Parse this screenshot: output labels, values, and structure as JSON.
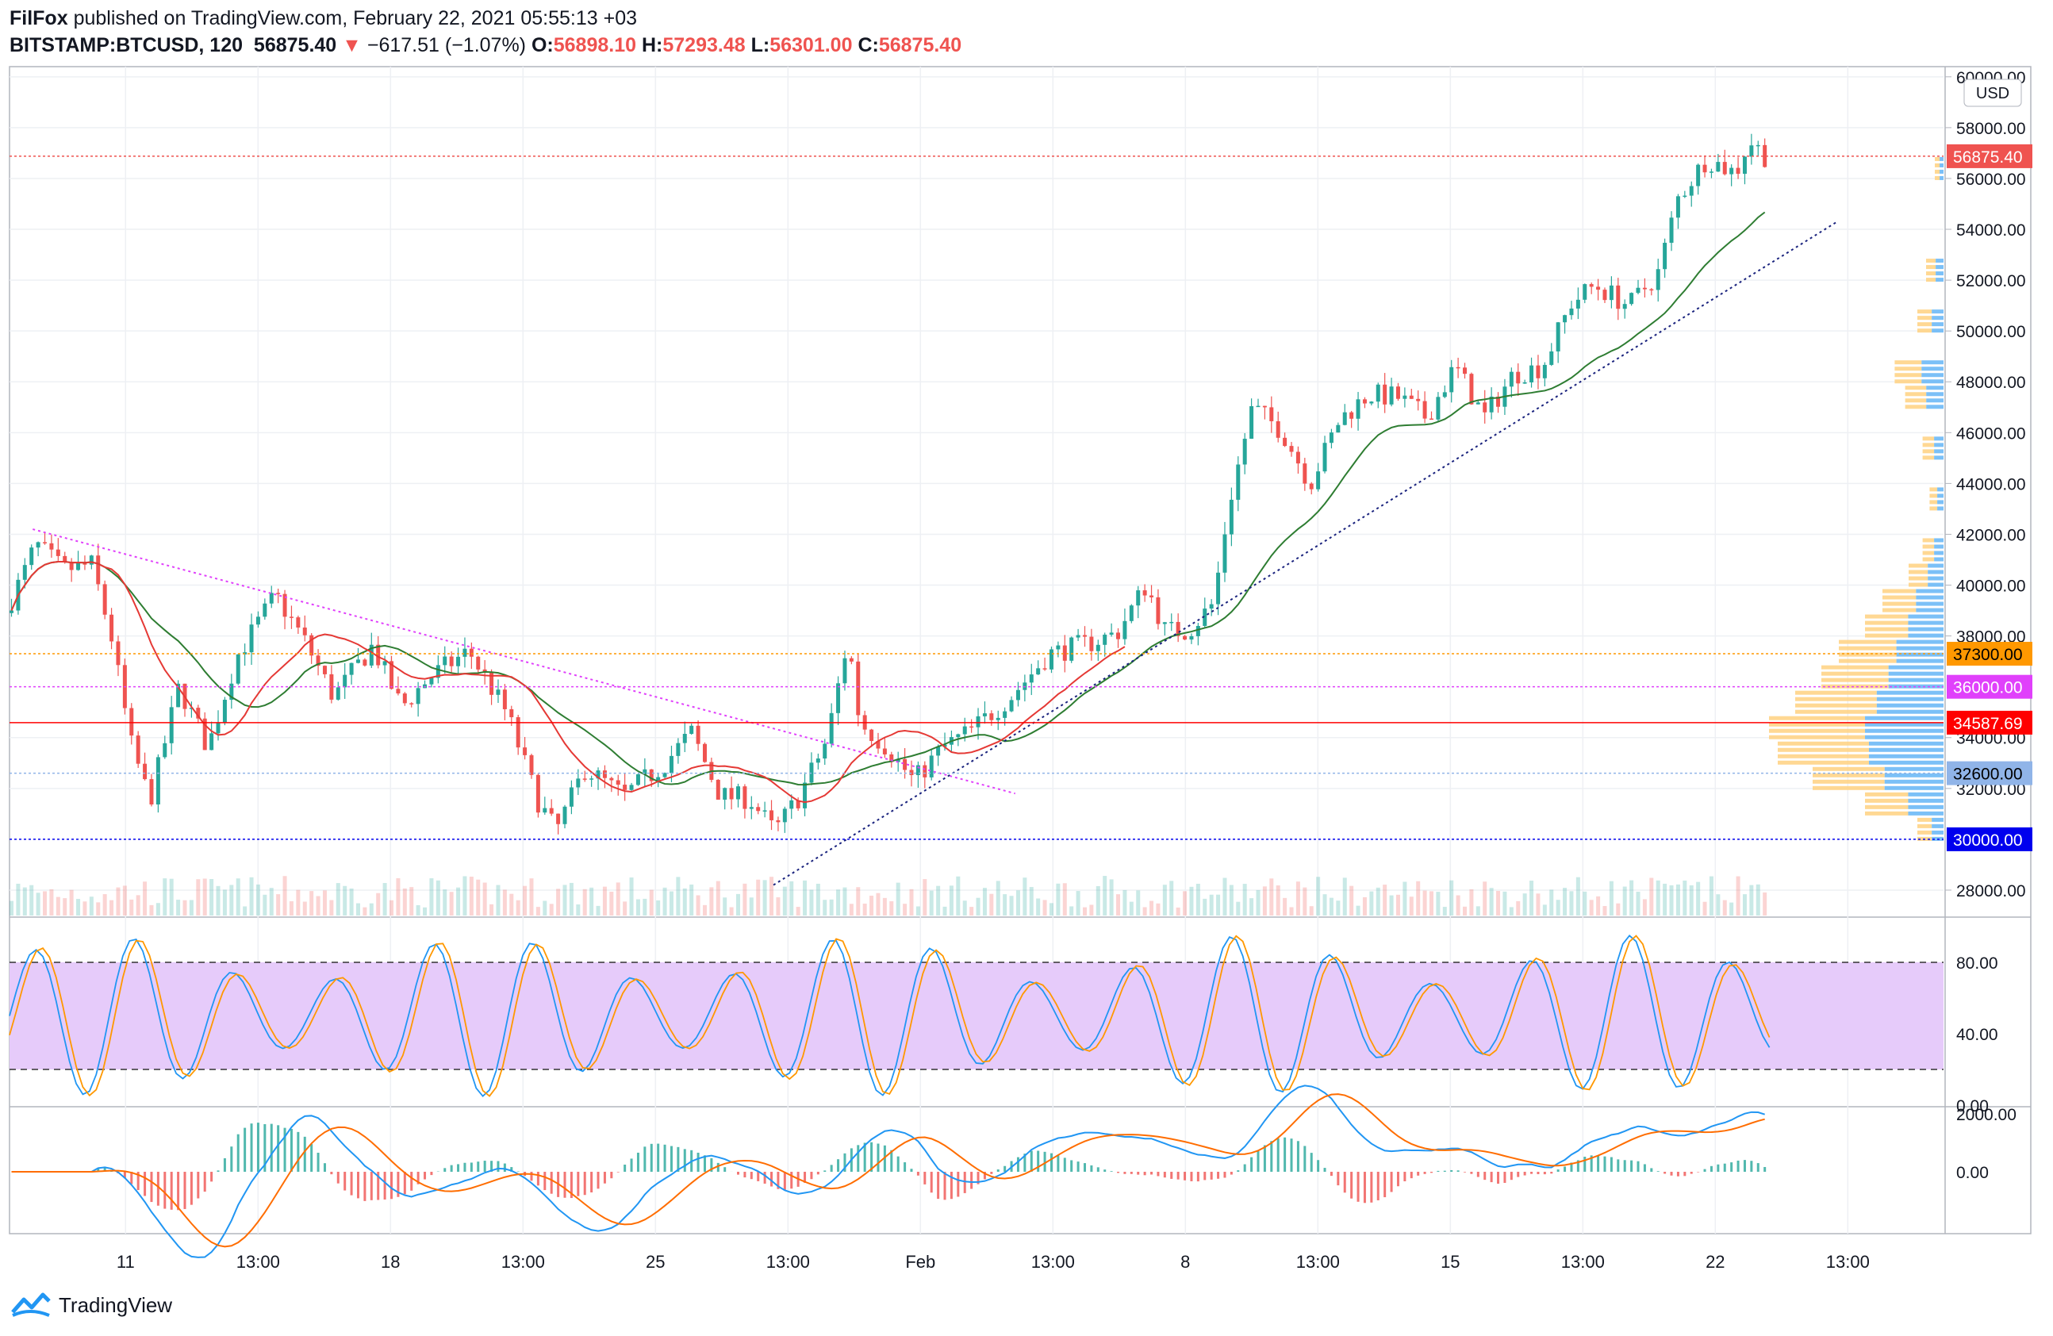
{
  "header": {
    "author": "FilFox",
    "published": "published on TradingView.com, February 22, 2021 05:55:13 +03",
    "symbol": "BITSTAMP:BTCUSD, 120",
    "last": "56875.40",
    "arrow": "▼",
    "change": "−617.51 (−1.07%)",
    "o_label": "O:",
    "o": "56898.10",
    "h_label": "H:",
    "h": "57293.48",
    "l_label": "L:",
    "l": "56301.00",
    "c_label": "C:",
    "c": "56875.40"
  },
  "currency_label": "USD",
  "footer": {
    "brand": "TradingView",
    "logo_icon": "tradingview-logo-icon"
  },
  "colors": {
    "up": "#26a69a",
    "down": "#ef5350",
    "sma": "#2e7d32",
    "ema": "#e53935",
    "trend_down": "#e040fb",
    "trend_up": "#1a237e",
    "stoch_band": "#e6cbfa",
    "k": "#2196f3",
    "d": "#ff9800",
    "macd": "#2196f3",
    "signal": "#ff6d00"
  },
  "chart_data": {
    "type": "candlestick",
    "y_ticks": [
      "60000.00",
      "58000.00",
      "56000.00",
      "54000.00",
      "52000.00",
      "50000.00",
      "48000.00",
      "46000.00",
      "44000.00",
      "42000.00",
      "40000.00",
      "38000.00",
      "34000.00",
      "32000.00",
      "28000.00"
    ],
    "x_ticks": [
      "11",
      "13:00",
      "18",
      "13:00",
      "25",
      "13:00",
      "Feb",
      "13:00",
      "8",
      "13:00",
      "15",
      "13:00",
      "22",
      "13:00"
    ],
    "ylim": [
      27000,
      60400
    ],
    "price_tags": [
      {
        "value": 56875.4,
        "label": "56875.40",
        "bg": "#ef5350",
        "fg": "#ffffff"
      },
      {
        "value": 37300.0,
        "label": "37300.00",
        "bg": "#ff9800",
        "fg": "#000000"
      },
      {
        "value": 36000.0,
        "label": "36000.00",
        "bg": "#e040fb",
        "fg": "#ffffff"
      },
      {
        "value": 34587.69,
        "label": "34587.69",
        "bg": "#ff0000",
        "fg": "#ffffff"
      },
      {
        "value": 32600.0,
        "label": "32600.00",
        "bg": "#90b4e8",
        "fg": "#000000"
      },
      {
        "value": 30000.0,
        "label": "30000.00",
        "bg": "#0000ee",
        "fg": "#ffffff"
      }
    ],
    "trend_down": {
      "from": [
        0.012,
        42200
      ],
      "to": [
        0.52,
        31800
      ]
    },
    "trend_up": {
      "from": [
        0.395,
        28200
      ],
      "to": [
        0.945,
        54300
      ]
    },
    "anchors": [
      [
        0.0,
        38900
      ],
      [
        0.01,
        40500
      ],
      [
        0.016,
        41600
      ],
      [
        0.03,
        40600
      ],
      [
        0.045,
        40800
      ],
      [
        0.055,
        38000
      ],
      [
        0.065,
        33800
      ],
      [
        0.075,
        31500
      ],
      [
        0.09,
        36000
      ],
      [
        0.105,
        33600
      ],
      [
        0.12,
        37200
      ],
      [
        0.14,
        39600
      ],
      [
        0.155,
        37800
      ],
      [
        0.17,
        35600
      ],
      [
        0.19,
        37600
      ],
      [
        0.205,
        35200
      ],
      [
        0.22,
        36400
      ],
      [
        0.24,
        37400
      ],
      [
        0.26,
        34900
      ],
      [
        0.275,
        31600
      ],
      [
        0.285,
        30300
      ],
      [
        0.3,
        32800
      ],
      [
        0.32,
        31700
      ],
      [
        0.34,
        32900
      ],
      [
        0.355,
        34200
      ],
      [
        0.37,
        31700
      ],
      [
        0.385,
        31600
      ],
      [
        0.398,
        30300
      ],
      [
        0.41,
        31600
      ],
      [
        0.425,
        33900
      ],
      [
        0.436,
        37900
      ],
      [
        0.442,
        34600
      ],
      [
        0.455,
        33700
      ],
      [
        0.47,
        32300
      ],
      [
        0.485,
        33600
      ],
      [
        0.5,
        34300
      ],
      [
        0.52,
        35600
      ],
      [
        0.54,
        37300
      ],
      [
        0.56,
        37700
      ],
      [
        0.575,
        38100
      ],
      [
        0.59,
        40000
      ],
      [
        0.6,
        38200
      ],
      [
        0.612,
        38200
      ],
      [
        0.625,
        39300
      ],
      [
        0.633,
        43200
      ],
      [
        0.645,
        47000
      ],
      [
        0.66,
        46100
      ],
      [
        0.675,
        44000
      ],
      [
        0.69,
        46500
      ],
      [
        0.705,
        47500
      ],
      [
        0.72,
        47400
      ],
      [
        0.735,
        46600
      ],
      [
        0.75,
        48600
      ],
      [
        0.765,
        46600
      ],
      [
        0.78,
        48300
      ],
      [
        0.795,
        48600
      ],
      [
        0.81,
        51100
      ],
      [
        0.822,
        51800
      ],
      [
        0.84,
        51000
      ],
      [
        0.855,
        52300
      ],
      [
        0.865,
        55200
      ],
      [
        0.88,
        56800
      ],
      [
        0.895,
        56200
      ],
      [
        0.902,
        57500
      ],
      [
        0.91,
        56900
      ]
    ],
    "stoch_levels": [
      80,
      20
    ],
    "stoch_ticks": [
      "80.00",
      "40.00",
      "0.00"
    ],
    "macd_ticks": [
      "2000.00",
      "0.00"
    ]
  }
}
